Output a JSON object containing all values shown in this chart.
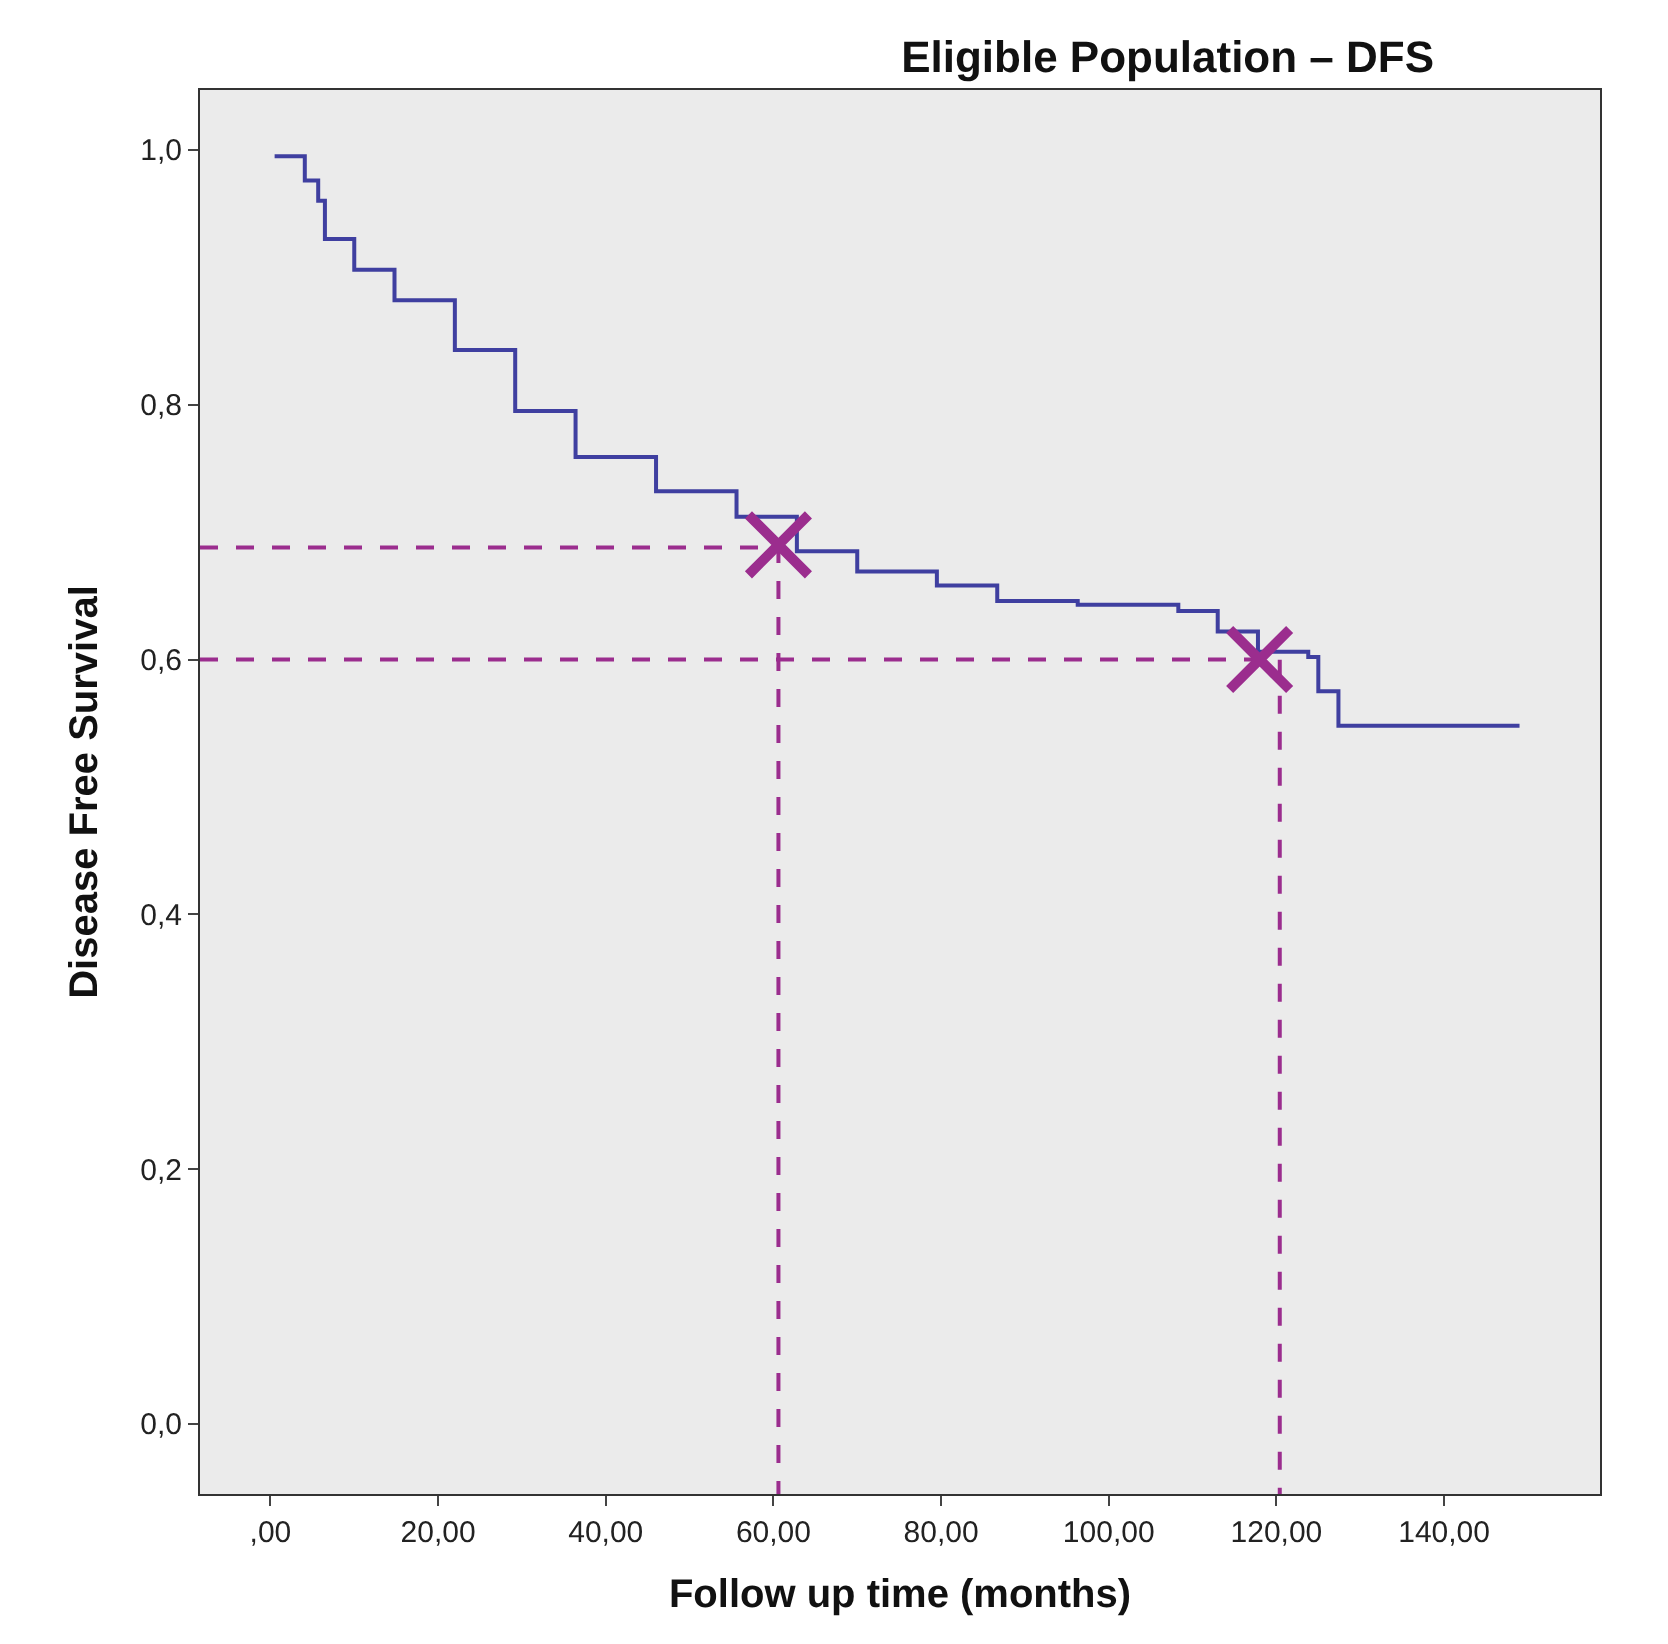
{
  "chart_data": {
    "type": "step",
    "title": "Eligible Population – DFS",
    "xlabel": "Follow up time (months)",
    "ylabel": "Disease Free Survival",
    "xlim": [
      -8.4,
      158.6
    ],
    "ylim": [
      -0.055,
      1.047
    ],
    "xticks": [
      {
        "value": 0,
        "label": ",00"
      },
      {
        "value": 20,
        "label": "20,00"
      },
      {
        "value": 40,
        "label": "40,00"
      },
      {
        "value": 60,
        "label": "60,00"
      },
      {
        "value": 80,
        "label": "80,00"
      },
      {
        "value": 100,
        "label": "100,00"
      },
      {
        "value": 120,
        "label": "120,00"
      },
      {
        "value": 140,
        "label": "140,00"
      }
    ],
    "yticks": [
      {
        "value": 0,
        "label": "0,0"
      },
      {
        "value": 0.2,
        "label": "0,2"
      },
      {
        "value": 0.4,
        "label": "0,4"
      },
      {
        "value": 0.6,
        "label": "0,6"
      },
      {
        "value": 0.8,
        "label": "0,8"
      },
      {
        "value": 1.0,
        "label": "1,0"
      }
    ],
    "grid": false,
    "series": [
      {
        "color": "#3f3fa0",
        "marker": "none",
        "line_style": "solid",
        "x": [
          0.5,
          4.1,
          5.7,
          6.5,
          10,
          14.8,
          22,
          29.2,
          36.4,
          46,
          55.6,
          62.8,
          70,
          79.5,
          86.7,
          96.3,
          108.3,
          113,
          117.8,
          123.8,
          125,
          127.4,
          149
        ],
        "values": [
          0.995,
          0.976,
          0.96,
          0.93,
          0.906,
          0.882,
          0.843,
          0.795,
          0.759,
          0.732,
          0.712,
          0.685,
          0.669,
          0.658,
          0.646,
          0.643,
          0.638,
          0.622,
          0.606,
          0.602,
          0.575,
          0.548,
          0.548
        ]
      },
      {
        "type": "line",
        "color": "#9b2d8e",
        "marker": "none",
        "line_style": "dashed",
        "x": [
          -8.4,
          60.6,
          60.6
        ],
        "values": [
          0.688,
          0.688,
          -0.055
        ]
      },
      {
        "type": "line",
        "color": "#9b2d8e",
        "marker": "none",
        "line_style": "dashed",
        "x": [
          -8.4,
          120.4,
          120.4
        ],
        "values": [
          0.6,
          0.6,
          -0.055
        ]
      },
      {
        "type": "scatter",
        "color": "#9b2d8e",
        "marker": "cross",
        "x": [
          60.6,
          118
        ],
        "values": [
          0.69,
          0.6
        ]
      }
    ]
  }
}
